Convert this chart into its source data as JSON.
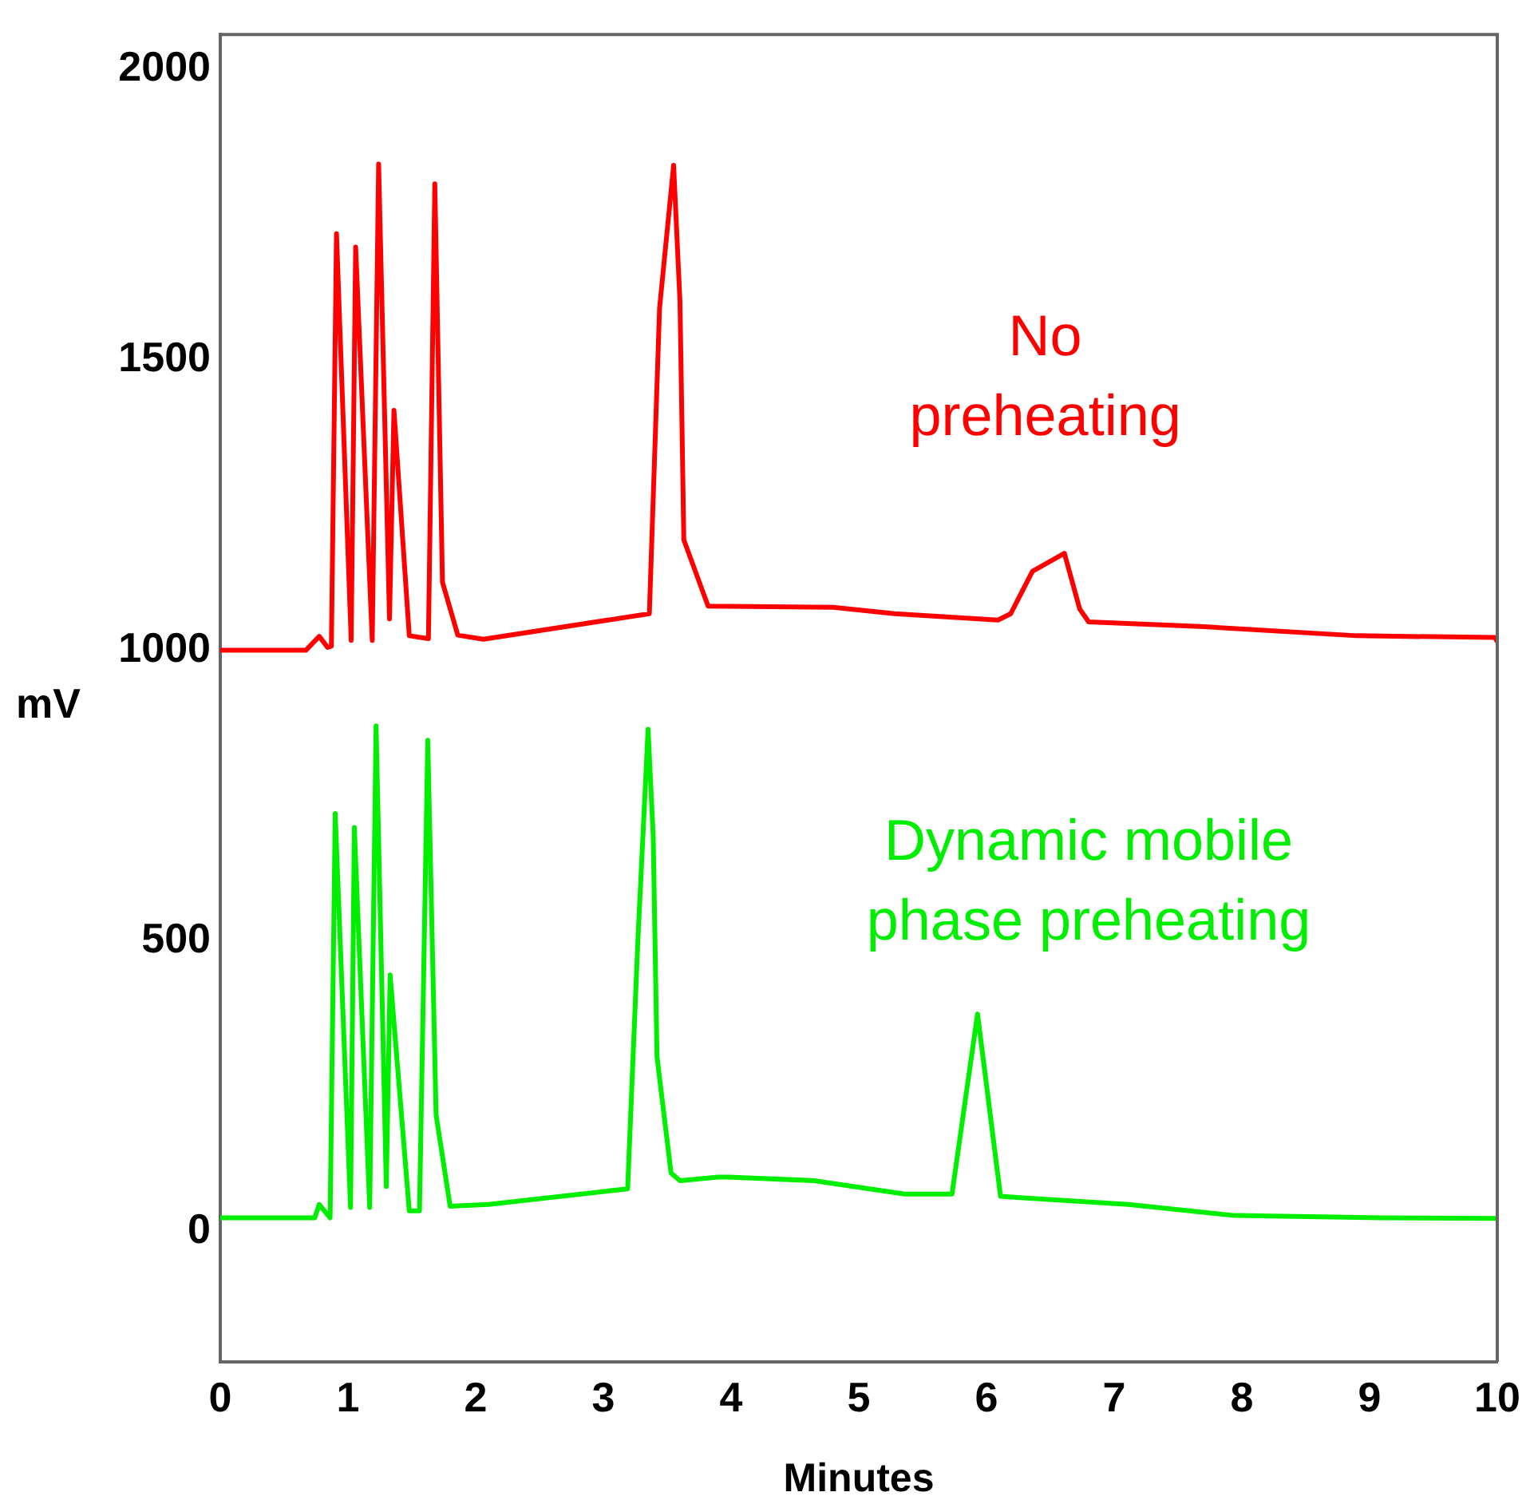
{
  "chart_data": {
    "type": "line",
    "xlabel": "Minutes",
    "ylabel": "mV",
    "xlim": [
      0,
      10
    ],
    "xticks": [
      0,
      1,
      2,
      3,
      4,
      5,
      6,
      7,
      8,
      9,
      10
    ],
    "ylim": [
      -225,
      2060
    ],
    "yticks": [
      0,
      500,
      1000,
      1500,
      2000
    ],
    "series": [
      {
        "name": "No preheating",
        "color": "#ff0000",
        "x": [
          0,
          0.67,
          0.775,
          0.84,
          0.87,
          0.91,
          1.025,
          1.06,
          1.19,
          1.24,
          1.325,
          1.36,
          1.48,
          1.63,
          1.68,
          1.74,
          1.86,
          2.06,
          3.36,
          3.44,
          3.55,
          3.6,
          3.63,
          3.82,
          4.8,
          5.28,
          6.09,
          6.19,
          6.36,
          6.61,
          6.73,
          6.8,
          7.67,
          8.9,
          9.98,
          10
        ],
        "values": [
          1000,
          1000,
          1024,
          1005,
          1007,
          1717,
          1017,
          1694,
          1017,
          1837,
          1054,
          1413,
          1025,
          1020,
          1803,
          1117,
          1026,
          1019,
          1063,
          1589,
          1835,
          1599,
          1190,
          1076,
          1074,
          1063,
          1052,
          1063,
          1136,
          1167,
          1071,
          1049,
          1041,
          1025,
          1022,
          1015
        ]
      },
      {
        "name": "Dynamic mobile phase preheating",
        "color": "#00ee00",
        "x": [
          0,
          0.74,
          0.775,
          0.86,
          0.9,
          1.02,
          1.05,
          1.17,
          1.22,
          1.3,
          1.33,
          1.48,
          1.56,
          1.625,
          1.69,
          1.8,
          2.1,
          3.19,
          3.27,
          3.35,
          3.39,
          3.42,
          3.53,
          3.6,
          3.9,
          3.98,
          4.65,
          5.36,
          5.73,
          5.93,
          6.11,
          7.11,
          7.94,
          9.09,
          10
        ],
        "values": [
          23,
          23,
          46,
          23,
          719,
          41,
          695,
          41,
          870,
          77,
          441,
          35,
          35,
          845,
          200,
          43,
          46,
          73,
          500,
          864,
          681,
          300,
          100,
          87,
          93,
          93,
          87,
          64,
          64,
          374,
          60,
          46,
          27,
          23,
          22
        ]
      }
    ]
  }
}
